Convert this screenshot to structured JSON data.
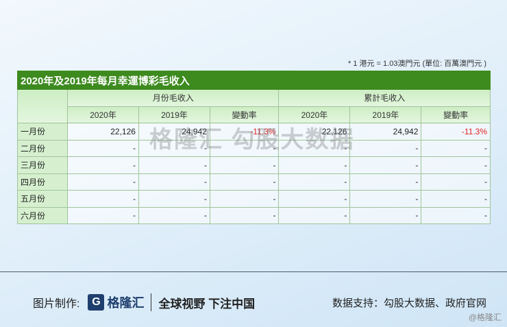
{
  "note": "* 1 港元 = 1.03澳門元 (單位: 百萬澳門元 )",
  "table": {
    "title": "2020年及2019年每月幸運博彩毛收入",
    "group_headers": [
      "月份毛收入",
      "累計毛收入"
    ],
    "sub_headers": [
      "2020年",
      "2019年",
      "變動率",
      "2020年",
      "2019年",
      "變動率"
    ],
    "rows": [
      {
        "month": "一月份",
        "values": [
          "22,126",
          "24,942",
          "-11.3%",
          "22,126",
          "24,942",
          "-11.3%"
        ]
      },
      {
        "month": "二月份",
        "values": [
          "-",
          "-",
          "-",
          "-",
          "-",
          "-"
        ]
      },
      {
        "month": "三月份",
        "values": [
          "-",
          "-",
          "-",
          "-",
          "-",
          "-"
        ]
      },
      {
        "month": "四月份",
        "values": [
          "-",
          "-",
          "-",
          "-",
          "-",
          "-"
        ]
      },
      {
        "month": "五月份",
        "values": [
          "-",
          "-",
          "-",
          "-",
          "-",
          "-"
        ]
      },
      {
        "month": "六月份",
        "values": [
          "-",
          "-",
          "-",
          "-",
          "-",
          "-"
        ]
      }
    ]
  },
  "watermark": "格隆汇 勾股大数据",
  "footer": {
    "made_by": "图片制作:",
    "logo_text": "格隆汇",
    "slogan": "全球视野 下注中国",
    "source": "数据支持：勾股大数据、政府官网",
    "credit": "@格隆汇"
  },
  "colors": {
    "title_bg": "#3d8a1f",
    "negative": "#e02020"
  }
}
